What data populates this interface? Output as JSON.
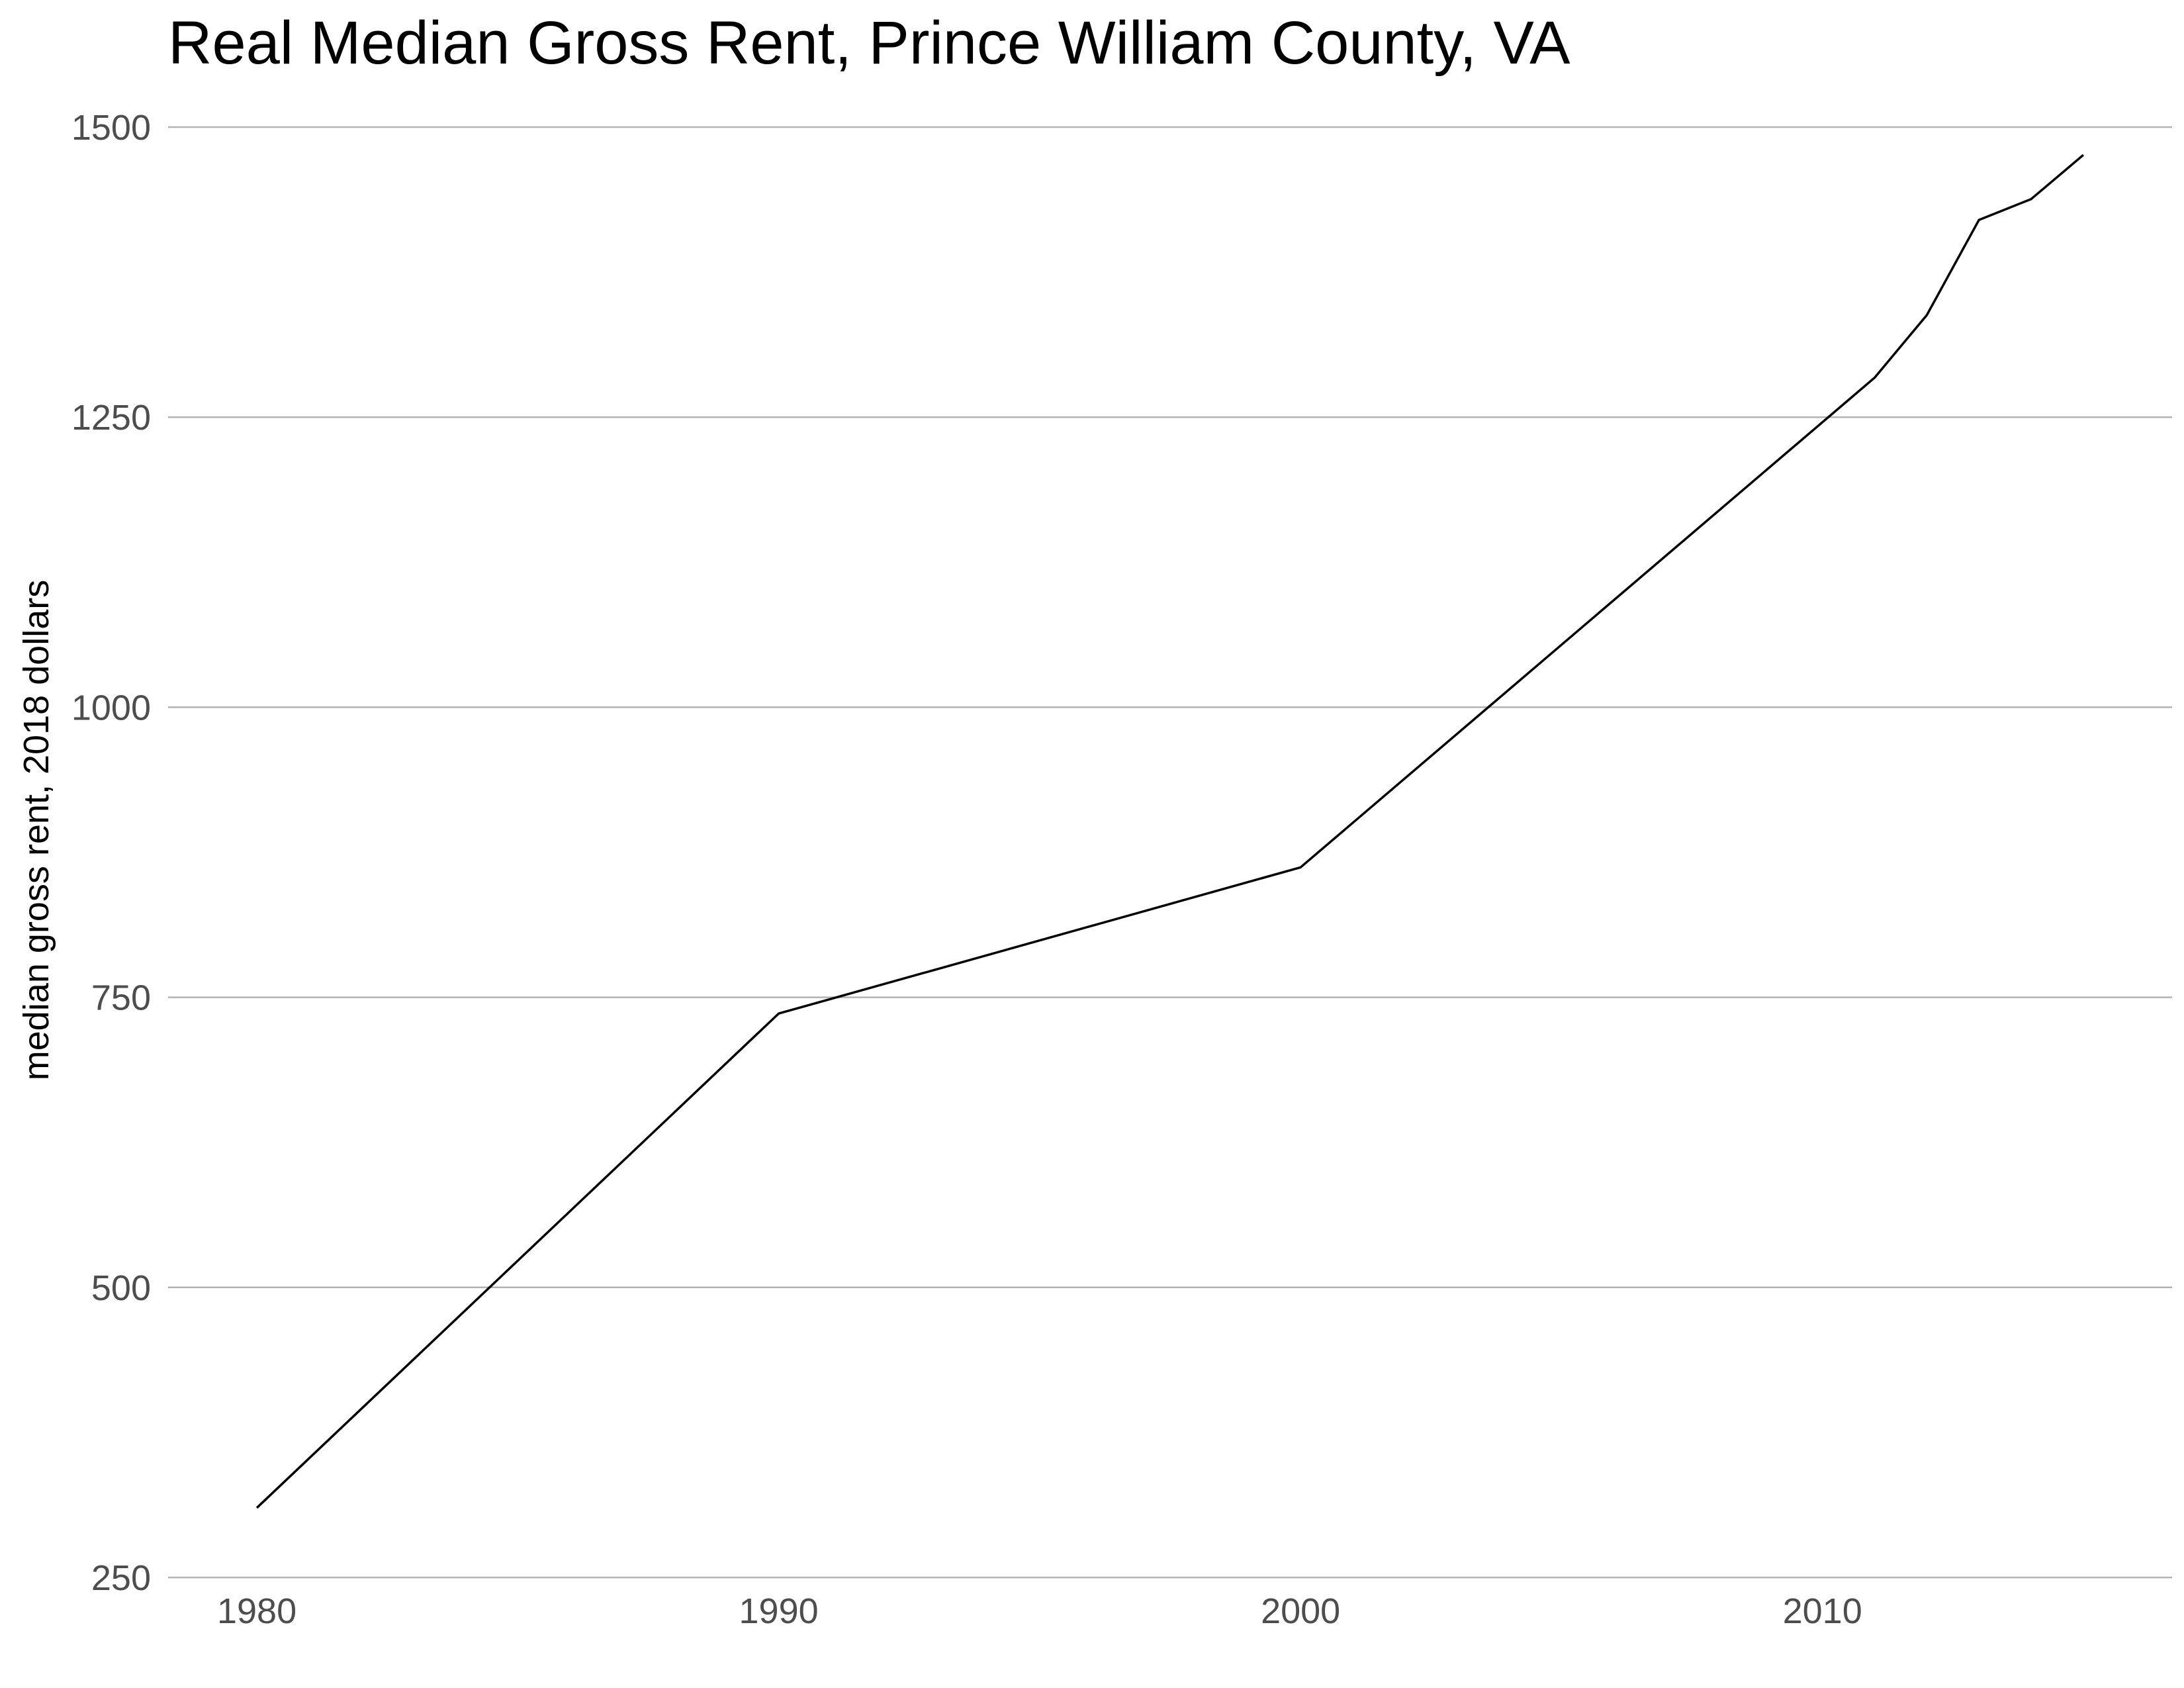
{
  "chart_data": {
    "type": "line",
    "title": "Real Median Gross Rent, Prince William County, VA",
    "xlabel": "",
    "ylabel": "median gross rent, 2018 dollars",
    "x_ticks": [
      1980,
      1990,
      2000,
      2010
    ],
    "y_ticks": [
      250,
      500,
      750,
      1000,
      1250,
      1500
    ],
    "xlim": [
      1978.3,
      2016.7
    ],
    "ylim": [
      250,
      1500
    ],
    "grid": "horizontal major gridlines only",
    "legend": "none",
    "series": [
      {
        "color": "#000000",
        "x": [
          1980,
          1990,
          2000,
          2011,
          2012,
          2013,
          2014,
          2015
        ],
        "y": [
          310,
          736,
          862,
          1284,
          1338,
          1420,
          1438,
          1476
        ]
      }
    ]
  }
}
